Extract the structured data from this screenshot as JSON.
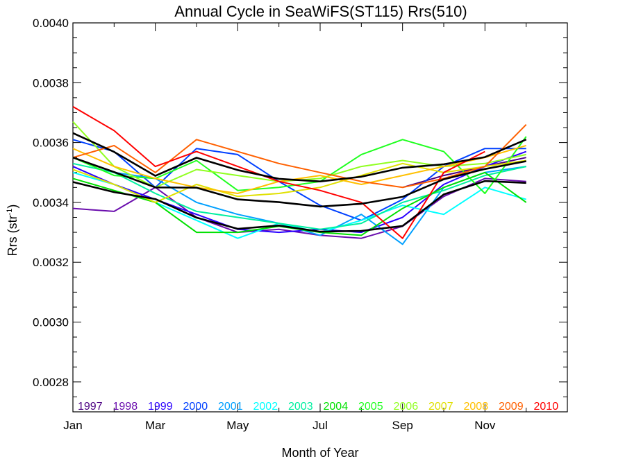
{
  "chart_data": {
    "type": "line",
    "title": "Annual Cycle in SeaWiFS(ST115) Rrs(510)",
    "xlabel": "Month of Year",
    "ylabel": "Rrs (str",
    "ylabel_sup": "-1",
    "ylabel_close": ")",
    "xlim": [
      1,
      13
    ],
    "ylim": [
      0.0027,
      0.004
    ],
    "x_ticks": [
      {
        "value": 1,
        "label": "Jan"
      },
      {
        "value": 3,
        "label": "Mar"
      },
      {
        "value": 5,
        "label": "May"
      },
      {
        "value": 7,
        "label": "Jul"
      },
      {
        "value": 9,
        "label": "Sep"
      },
      {
        "value": 11,
        "label": "Nov"
      }
    ],
    "y_ticks": [
      {
        "value": 0.0028,
        "label": "0.0028"
      },
      {
        "value": 0.003,
        "label": "0.0030"
      },
      {
        "value": 0.0032,
        "label": "0.0032"
      },
      {
        "value": 0.0034,
        "label": "0.0034"
      },
      {
        "value": 0.0036,
        "label": "0.0036"
      },
      {
        "value": 0.0038,
        "label": "0.0038"
      },
      {
        "value": 0.004,
        "label": "0.0040"
      }
    ],
    "x": [
      1,
      2,
      3,
      4,
      5,
      6,
      7,
      8,
      9,
      10,
      11,
      12
    ],
    "series": [
      {
        "name": "1997",
        "color": "#4b0082",
        "values": [
          null,
          null,
          null,
          null,
          null,
          null,
          null,
          null,
          0.00345,
          0.00349,
          0.00352,
          0.00355
        ]
      },
      {
        "name": "1998",
        "color": "#6a0dad",
        "values": [
          0.00338,
          0.00337,
          0.00345,
          0.00335,
          0.0033,
          0.00331,
          0.00329,
          0.00328,
          0.00332,
          0.00342,
          0.00348,
          0.00347
        ]
      },
      {
        "name": "1999",
        "color": "#2a00ff",
        "values": [
          0.00352,
          0.00346,
          0.00341,
          0.00336,
          0.00331,
          0.0033,
          0.00331,
          0.0033,
          0.00335,
          0.00346,
          0.00352,
          0.00357
        ]
      },
      {
        "name": "2000",
        "color": "#0040ff",
        "values": [
          0.00361,
          0.00357,
          0.00345,
          0.00358,
          0.00356,
          0.00347,
          0.00339,
          0.00334,
          0.00341,
          0.00352,
          0.00358,
          0.00358
        ]
      },
      {
        "name": "2001",
        "color": "#00a0ff",
        "values": [
          0.00355,
          0.0035,
          0.00348,
          0.0034,
          0.00336,
          0.00333,
          0.00329,
          0.00336,
          0.00326,
          0.00345,
          0.0035,
          0.00352
        ]
      },
      {
        "name": "2002",
        "color": "#00ffff",
        "values": [
          0.0035,
          0.00346,
          0.0034,
          0.00334,
          0.00328,
          0.00333,
          0.0033,
          0.00334,
          0.00339,
          0.00336,
          0.00345,
          0.00341
        ]
      },
      {
        "name": "2003",
        "color": "#00f0a0",
        "values": [
          0.00353,
          0.0035,
          0.00343,
          0.00337,
          0.00335,
          0.00333,
          0.00331,
          0.00333,
          0.0034,
          0.00344,
          0.00349,
          0.00352
        ]
      },
      {
        "name": "2004",
        "color": "#00e000",
        "values": [
          0.00348,
          0.00344,
          0.0034,
          0.0033,
          0.0033,
          0.00332,
          0.0033,
          0.00329,
          0.00338,
          0.00345,
          0.0035,
          0.0034
        ]
      },
      {
        "name": "2005",
        "color": "#20ff20",
        "values": [
          0.00355,
          0.00349,
          0.00348,
          0.00354,
          0.00344,
          0.00345,
          0.00347,
          0.00356,
          0.00361,
          0.00357,
          0.00343,
          0.00362
        ]
      },
      {
        "name": "2006",
        "color": "#90ff20",
        "values": [
          0.00367,
          0.00352,
          0.00345,
          0.00351,
          0.00349,
          0.00347,
          0.00348,
          0.00352,
          0.00354,
          0.00352,
          0.00353,
          0.00356
        ]
      },
      {
        "name": "2007",
        "color": "#e0e000",
        "values": [
          0.00351,
          0.00346,
          0.0034,
          0.00346,
          0.00342,
          0.00343,
          0.00345,
          0.00349,
          0.00353,
          0.0035,
          0.00352,
          0.00354
        ]
      },
      {
        "name": "2008",
        "color": "#ffc000",
        "values": [
          0.00358,
          0.00352,
          0.00348,
          0.00345,
          0.00343,
          0.00347,
          0.00349,
          0.00346,
          0.00349,
          0.00352,
          0.00355,
          0.00359
        ]
      },
      {
        "name": "2009",
        "color": "#ff6000",
        "values": [
          0.00355,
          0.00359,
          0.0035,
          0.00361,
          0.00357,
          0.00353,
          0.0035,
          0.00347,
          0.00345,
          0.00348,
          0.00352,
          0.00366
        ]
      },
      {
        "name": "2010",
        "color": "#ff0000",
        "values": [
          0.00372,
          0.00364,
          0.00352,
          0.00357,
          0.00352,
          0.00347,
          0.00344,
          0.0034,
          0.00328,
          0.0035,
          0.00357,
          null
        ]
      }
    ],
    "legend_placement": "bottom inside plot",
    "reference_lines_color": "#000000"
  }
}
